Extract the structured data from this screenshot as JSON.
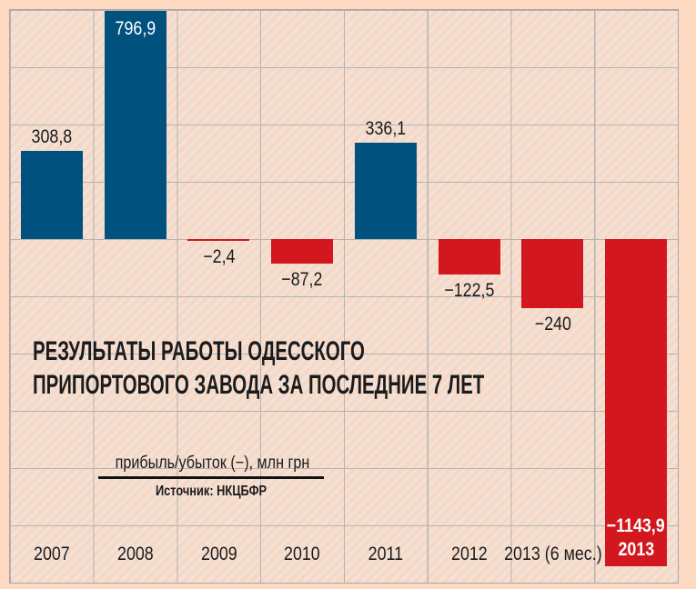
{
  "chart_data": {
    "type": "bar",
    "title": "РЕЗУЛЬТАТЫ РАБОТЫ ОДЕССКОГО ПРИПОРТОВОГО ЗАВОДА ЗА ПОСЛЕДНИЕ 7 ЛЕТ",
    "title_lines": [
      "РЕЗУЛЬТАТЫ РАБОТЫ ОДЕССКОГО",
      "ПРИПОРТОВОГО ЗАВОДА ЗА ПОСЛЕДНИЕ 7 ЛЕТ"
    ],
    "legend": "прибыль/убыток (−), млн грн",
    "source": "Источник: НКЦБФР",
    "unit": "млн грн",
    "categories": [
      "2007",
      "2008",
      "2009",
      "2010",
      "2011",
      "2012",
      "2013 (6 мес.)",
      "2013"
    ],
    "values": [
      308.8,
      796.9,
      -2.4,
      -87.2,
      336.1,
      -122.5,
      -240,
      -1143.9
    ],
    "bars": [
      {
        "year": "2007",
        "value": 308.8,
        "label": "308,8",
        "color": "blue",
        "label_pos": "above"
      },
      {
        "year": "2008",
        "value": 796.9,
        "label": "796,9",
        "color": "blue",
        "label_pos": "inside-top"
      },
      {
        "year": "2009",
        "value": -2.4,
        "label": "−2,4",
        "color": "red",
        "label_pos": "below"
      },
      {
        "year": "2010",
        "value": -87.2,
        "label": "−87,2",
        "color": "red",
        "label_pos": "below"
      },
      {
        "year": "2011",
        "value": 336.1,
        "label": "336,1",
        "color": "blue",
        "label_pos": "above"
      },
      {
        "year": "2012",
        "value": -122.5,
        "label": "−122,5",
        "color": "red",
        "label_pos": "below"
      },
      {
        "year": "2013 (6 мес.)",
        "value": -240,
        "label": "−240",
        "color": "red",
        "label_pos": "below"
      },
      {
        "year": "2013",
        "value": -1143.9,
        "label": "−1143,9",
        "color": "red",
        "label_pos": "inside-bottom",
        "year_inside": true
      }
    ],
    "colors": {
      "blue": "#01517e",
      "red": "#d2171f",
      "background": "#fcd9c0",
      "grid": "#b6b3b0",
      "text": "#1b1b1b",
      "inside_label": "#ffffff"
    },
    "axis": {
      "units_per_gridline": 200,
      "gridline_rows": 10,
      "gridline_cols": 8,
      "zero_row_index": 4,
      "ylim": [
        -1200,
        800
      ],
      "grid": true,
      "legend_position": "left-middle"
    }
  }
}
